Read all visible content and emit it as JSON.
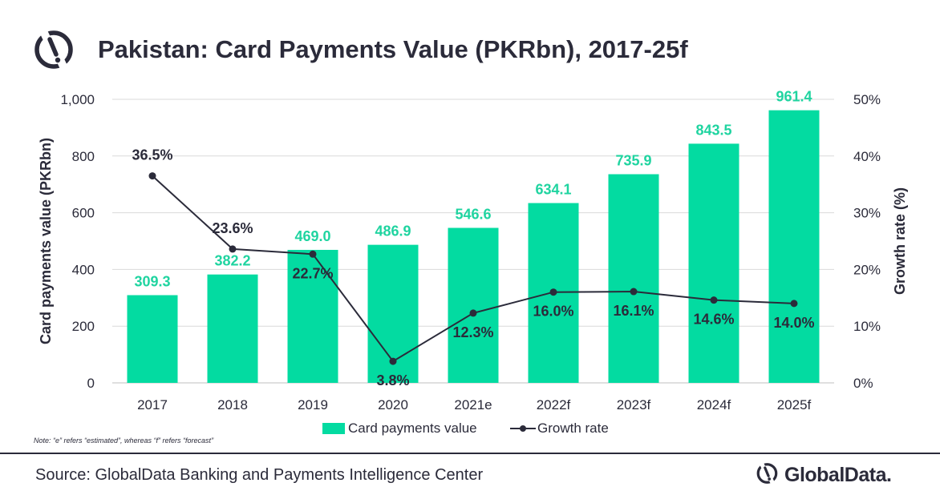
{
  "header": {
    "title": "Pakistan: Card Payments Value (PKRbn), 2017-25f"
  },
  "colors": {
    "bar": "#03dba1",
    "bar_label": "#1fd4a0",
    "line": "#2b2b3a",
    "grid": "#d9d9d9",
    "text": "#2b2b3a"
  },
  "chart_data": {
    "type": "bar",
    "categories": [
      "2017",
      "2018",
      "2019",
      "2020",
      "2021e",
      "2022f",
      "2023f",
      "2024f",
      "2025f"
    ],
    "series": [
      {
        "name": "Card payments value",
        "type": "bar",
        "axis": "left",
        "values": [
          309.3,
          382.2,
          469.0,
          486.9,
          546.6,
          634.1,
          735.9,
          843.5,
          961.4
        ],
        "labels": [
          "309.3",
          "382.2",
          "469.0",
          "486.9",
          "546.6",
          "634.1",
          "735.9",
          "843.5",
          "961.4"
        ]
      },
      {
        "name": "Growth rate",
        "type": "line",
        "axis": "right",
        "values": [
          36.5,
          23.6,
          22.7,
          3.8,
          12.3,
          16.0,
          16.1,
          14.6,
          14.0
        ],
        "labels": [
          "36.5%",
          "23.6%",
          "22.7%",
          "3.8%",
          "12.3%",
          "16.0%",
          "16.1%",
          "14.6%",
          "14.0%"
        ]
      }
    ],
    "ylabel": "Card payments value (PKRbn)",
    "ylabel_right": "Growth rate (%)",
    "ylim": [
      0,
      1000
    ],
    "ylim_right": [
      0,
      50
    ],
    "yticks": [
      "0",
      "200",
      "400",
      "600",
      "800",
      "1,000"
    ],
    "yticks_right": [
      "0%",
      "10%",
      "20%",
      "30%",
      "40%",
      "50%"
    ],
    "grid": true,
    "legend": "bottom"
  },
  "legend": {
    "bar_label": "Card payments value",
    "line_label": "Growth rate"
  },
  "footer": {
    "note": "Note: “e” refers “estimated”, whereas “f” refers “forecast”",
    "source": "Source: GlobalData Banking and Payments Intelligence Center",
    "brand": "GlobalData."
  },
  "icons": {
    "top_logo": "globaldata-logo-icon",
    "brand_logo": "globaldata-logo-icon"
  }
}
